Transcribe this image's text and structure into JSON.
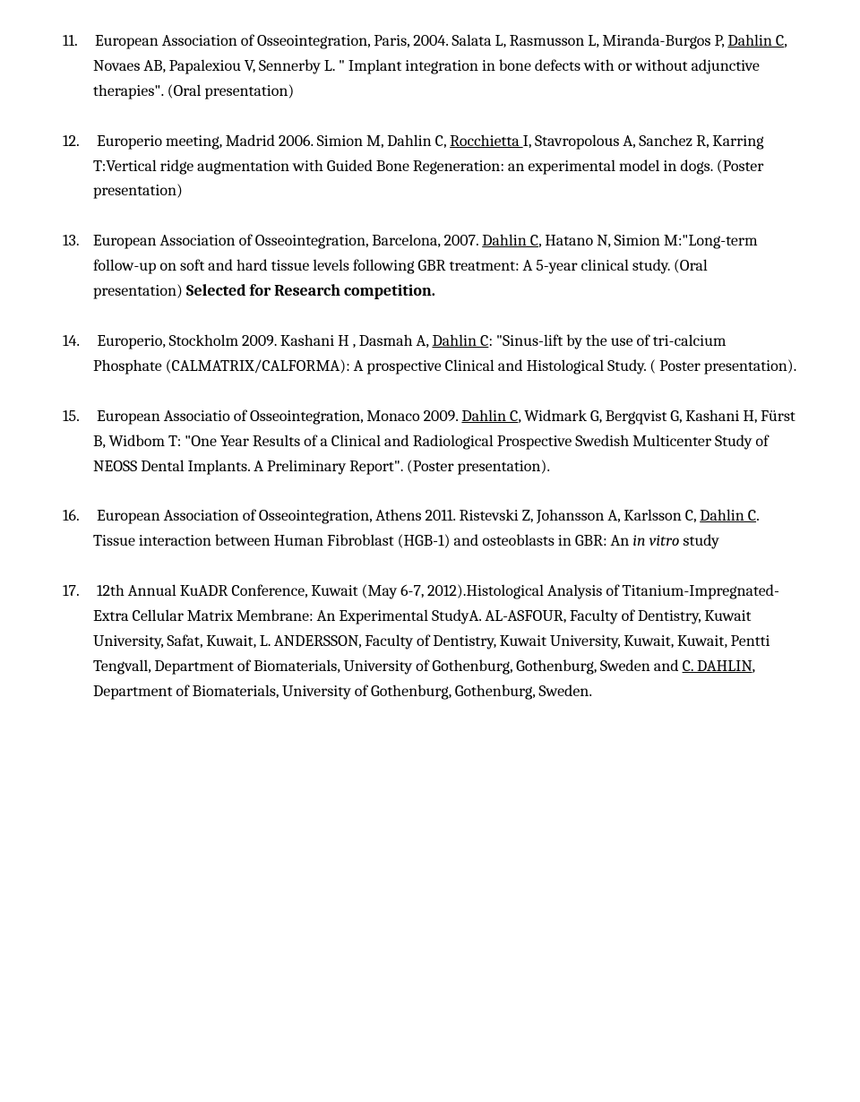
{
  "typography": {
    "font_family": "Cambria, Georgia, serif",
    "font_size_pt": 13,
    "line_height": 1.55,
    "text_color": "#000000",
    "background_color": "#ffffff"
  },
  "entries": [
    {
      "num": "11.",
      "pre": "European Association of Osseointegration, Paris, 2004. Salata L, Rasmusson L, Miranda-Burgos P, ",
      "u1": "Dahlin C",
      "mid1": ", Novaes AB, Papalexiou V, Sennerby L. \" Implant integration in bone defects with or without adjunctive therapies\". (Oral presentation)"
    },
    {
      "num": "12.",
      "pre": "Europerio meeting, Madrid 2006. Simion M, Dahlin C, ",
      "u1": "Rocchietta ",
      "mid1": "I, Stavropolous A, Sanchez R, Karring T:Vertical ridge augmentation with Guided Bone Regeneration: an experimental model in dogs. (Poster presentation)"
    },
    {
      "num": "13.",
      "pre": "European Association of Osseointegration, Barcelona, 2007. ",
      "u1": "Dahlin C",
      "mid1": ", Hatano N, Simion M:\"Long-term follow-up on soft and hard tissue levels following GBR treatment: A 5-year clinical study. (Oral presentation) ",
      "bold1": "Selected for Research competition."
    },
    {
      "num": "14.",
      "pre": "Europerio, Stockholm 2009. Kashani H , Dasmah A, ",
      "u1": "Dahlin C",
      "mid1": ":   \"Sinus-lift by the use of tri-calcium Phosphate (CALMATRIX/CALFORMA): A prospective Clinical and Histological Study. ( Poster presentation)."
    },
    {
      "num": "15.",
      "pre": "European Associatio of Osseointegration, Monaco 2009. ",
      "u1": "Dahlin C",
      "mid1": ", Widmark G, Bergqvist G, Kashani H, Fürst B, Widbom T:  \"One Year Results of a Clinical and Radiological Prospective Swedish Multicenter Study of NEOSS Dental Implants. A Preliminary Report\". (Poster presentation)."
    },
    {
      "num": "16.",
      "pre": "European Association of Osseointegration, Athens 2011. Ristevski Z, Johansson A, Karlsson C, ",
      "u1": "Dahlin C",
      "mid1": ". Tissue interaction between Human Fibroblast (HGB-1) and osteoblasts in GBR: An ",
      "ital1": "in vitro",
      "mid2": " study"
    },
    {
      "num": "17.",
      "pre": "12th Annual KuADR Conference, Kuwait (May 6-7, 2012).Histological Analysis of Titanium-Impregnated-Extra Cellular Matrix Membrane: An Experimental StudyA. AL-ASFOUR, Faculty of Dentistry, Kuwait University, Safat, Kuwait, L. ANDERSSON, Faculty of Dentistry, Kuwait University, Kuwait, Kuwait, Pentti Tengvall, Department of Biomaterials, University of Gothenburg, Gothenburg, Sweden and ",
      "u1": "C. DAHLIN",
      "mid1": ", Department of Biomaterials, University of Gothenburg, Gothenburg, Sweden."
    }
  ]
}
